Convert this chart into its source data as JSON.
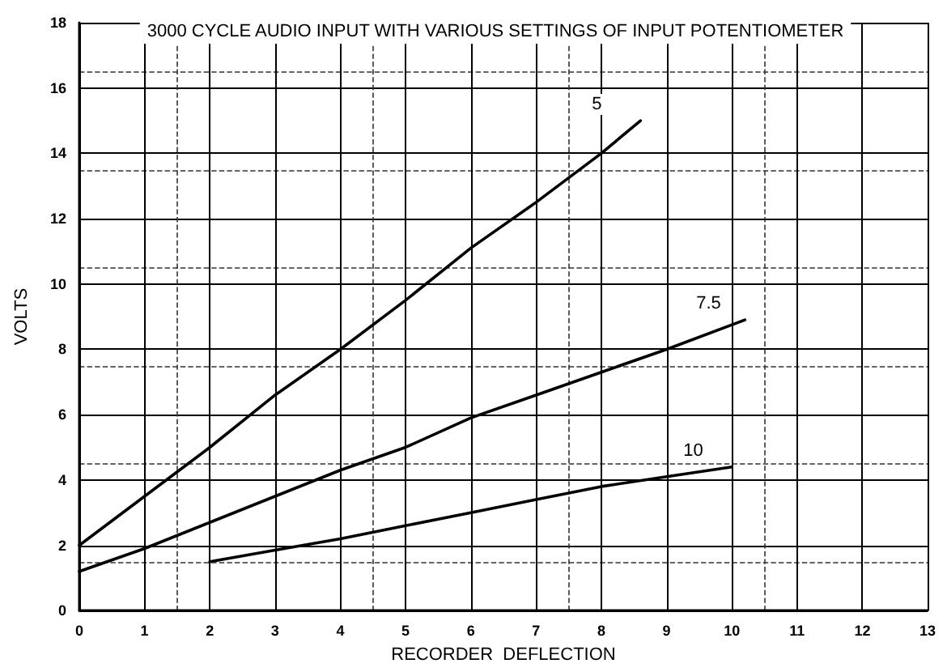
{
  "chart_data": {
    "type": "line",
    "title": "3000 CYCLE AUDIO INPUT WITH VARIOUS SETTINGS OF INPUT POTENTIOMETER",
    "xlabel": "RECORDER  DEFLECTION",
    "ylabel": "VOLTS",
    "series": [
      {
        "name": "5",
        "color": "#000000",
        "x": [
          0,
          1,
          2,
          3,
          4,
          5,
          6,
          7,
          8,
          8.6
        ],
        "values": [
          2,
          3.5,
          5,
          6.6,
          8,
          9.5,
          11.1,
          12.5,
          14,
          15
        ]
      },
      {
        "name": "7.5",
        "color": "#000000",
        "x": [
          0,
          1,
          2,
          3,
          4,
          5,
          6,
          7,
          8,
          9,
          10.2
        ],
        "values": [
          1.2,
          1.9,
          2.7,
          3.5,
          4.3,
          5,
          5.9,
          6.6,
          7.3,
          8,
          8.9
        ]
      },
      {
        "name": "10",
        "color": "#000000",
        "x": [
          2,
          3,
          4,
          5,
          6,
          7,
          8,
          9,
          10
        ],
        "values": [
          1.5,
          1.85,
          2.2,
          2.6,
          3,
          3.4,
          3.8,
          4.1,
          4.4
        ]
      }
    ],
    "xlim": [
      0,
      13
    ],
    "xticks": [
      0,
      1,
      2,
      3,
      4,
      5,
      6,
      7,
      8,
      9,
      10,
      11,
      12,
      13
    ],
    "ylim": [
      0,
      18
    ],
    "yticks": [
      0,
      2,
      4,
      6,
      8,
      10,
      12,
      14,
      16,
      18
    ],
    "grid": true,
    "marker": "none",
    "line_style": "solid",
    "legend": false
  }
}
